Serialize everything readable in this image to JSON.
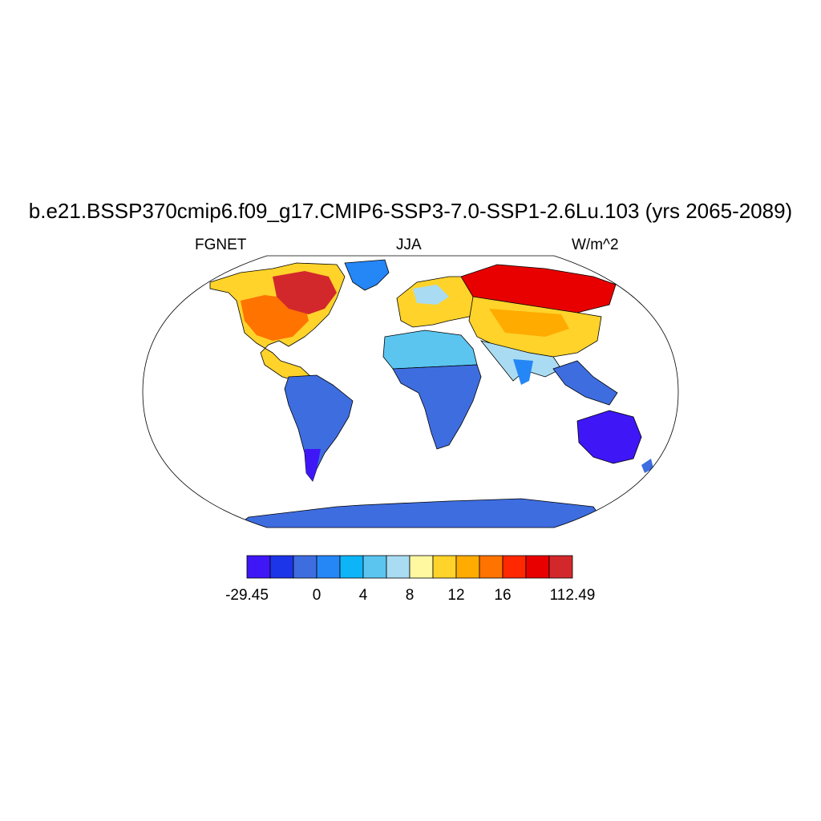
{
  "title": "b.e21.BSSP370cmip6.f09_g17.CMIP6-SSP3-7.0-SSP1-2.6Lu.103 (yrs 2065-2089)",
  "left_label": "FGNET",
  "center_label": "JJA",
  "right_label": "W/m^2",
  "projection": "Robinson",
  "colorbar": {
    "colors": [
      "#3f17f6",
      "#1c35e8",
      "#3e6de0",
      "#2586f6",
      "#0db4f7",
      "#5bc5f0",
      "#a9dcf2",
      "#fff8a0",
      "#ffd32a",
      "#ffab00",
      "#ff7300",
      "#ff2800",
      "#e80000",
      "#d2282c"
    ],
    "labels": [
      {
        "text": "-29.45",
        "boundary": 0
      },
      {
        "text": "0",
        "boundary": 3
      },
      {
        "text": "4",
        "boundary": 5
      },
      {
        "text": "8",
        "boundary": 7
      },
      {
        "text": "12",
        "boundary": 9
      },
      {
        "text": "16",
        "boundary": 11
      },
      {
        "text": "112.49",
        "boundary": 14
      }
    ]
  }
}
